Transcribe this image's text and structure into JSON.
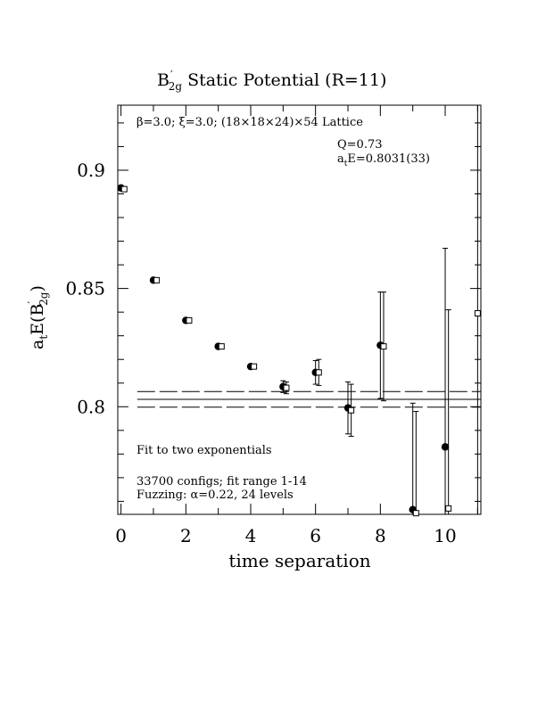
{
  "chart_data": {
    "type": "scatter",
    "title_main": "B",
    "title_sup": "′",
    "title_sub": "2g",
    "title_rest": " Static Potential (R=11)",
    "xlabel": "time separation",
    "ylabel_main": "a",
    "ylabel_sub1": "t",
    "ylabel_mid": "E(B",
    "ylabel_sup": "′",
    "ylabel_sub2": "2g",
    "ylabel_end": ")",
    "xlim": [
      -0.1,
      11.1
    ],
    "ylim": [
      0.7545,
      0.9275
    ],
    "x_ticks": [
      0,
      2,
      4,
      6,
      8,
      10
    ],
    "x_tick_labels": [
      "0",
      "2",
      "4",
      "6",
      "8",
      "10"
    ],
    "y_ticks": [
      0.8,
      0.85,
      0.9
    ],
    "y_tick_labels": [
      "0.8",
      "0.85",
      "0.9"
    ],
    "annotations": {
      "lattice": "β=3.0; ξ=3.0; (18×18×24)×54 Lattice",
      "q": "Q=0.73",
      "ae_main": "a",
      "ae_sub": "t",
      "ae_rest": "E=0.8031(33)",
      "fit": "Fit to two exponentials",
      "configs": "33700 configs; fit range 1-14",
      "fuzzing": "Fuzzing: α=0.22, 24 levels"
    },
    "series": [
      {
        "marker": "filled-circle",
        "points": [
          {
            "x": 0,
            "y": 0.8925,
            "err": 0.0005
          },
          {
            "x": 1,
            "y": 0.8535,
            "err": 0.0006
          },
          {
            "x": 2,
            "y": 0.8365,
            "err": 0.0008
          },
          {
            "x": 3,
            "y": 0.8255,
            "err": 0.0008
          },
          {
            "x": 4,
            "y": 0.817,
            "err": 0.001
          },
          {
            "x": 5,
            "y": 0.8085,
            "err": 0.0025
          },
          {
            "x": 6,
            "y": 0.8145,
            "err": 0.005
          },
          {
            "x": 7,
            "y": 0.7995,
            "err": 0.011
          },
          {
            "x": 8,
            "y": 0.826,
            "err": 0.0225
          },
          {
            "x": 9,
            "y": 0.7565,
            "err": 0.045
          },
          {
            "x": 10,
            "y": 0.783,
            "err": 0.084
          }
        ]
      },
      {
        "marker": "open-square",
        "points": [
          {
            "x": 0.1,
            "y": 0.892,
            "err": 0.0005
          },
          {
            "x": 1.1,
            "y": 0.8535,
            "err": 0.0006
          },
          {
            "x": 2.1,
            "y": 0.8365,
            "err": 0.0008
          },
          {
            "x": 3.1,
            "y": 0.8255,
            "err": 0.0008
          },
          {
            "x": 4.1,
            "y": 0.817,
            "err": 0.001
          },
          {
            "x": 5.1,
            "y": 0.808,
            "err": 0.0025
          },
          {
            "x": 6.1,
            "y": 0.8145,
            "err": 0.0055
          },
          {
            "x": 7.1,
            "y": 0.7985,
            "err": 0.011
          },
          {
            "x": 8.1,
            "y": 0.8255,
            "err": 0.023
          },
          {
            "x": 9.1,
            "y": 0.755,
            "err": 0.043
          },
          {
            "x": 10.1,
            "y": 0.757,
            "err": 0.084
          },
          {
            "x": 11.0,
            "y": 0.8395,
            "err": 0.09
          }
        ]
      }
    ],
    "fit_band": {
      "x_start": 0.5,
      "x_end": 11.1,
      "center": 0.8031,
      "lower": 0.7998,
      "upper": 0.8064
    }
  }
}
